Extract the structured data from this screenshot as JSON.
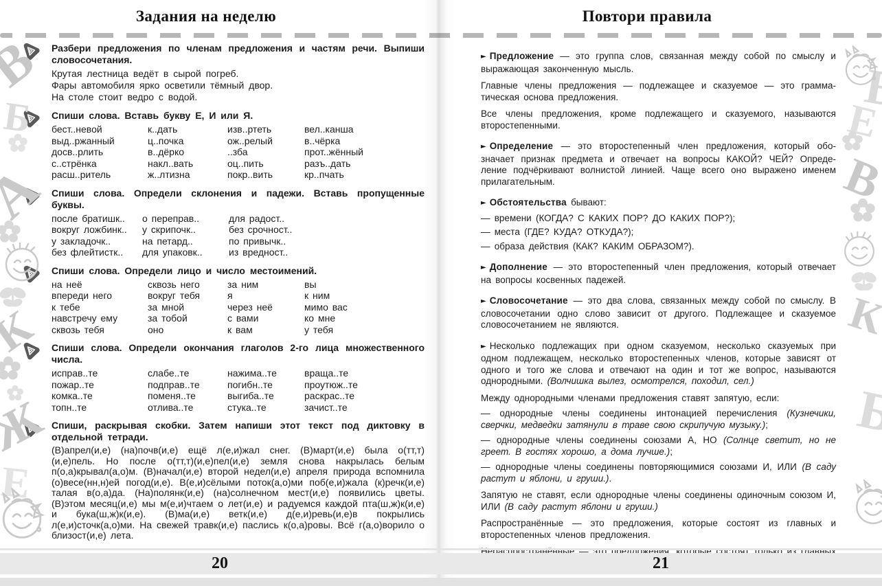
{
  "left_page": {
    "title": "Задания на неделю",
    "page_number": "20",
    "tasks": [
      {
        "instruction": "Разбери предложения по членам предложения и частям речи. Вы­пиши словосочетания.",
        "lines": [
          "Крутая лестница ведёт в сырой погреб.",
          "Фары автомобиля ярко осветили тёмный двор.",
          "На столе стоит ведро с водой."
        ]
      },
      {
        "instruction": "Спиши слова. Вставь букву Е, И или Я.",
        "columns": [
          [
            "бест..невой",
            "выд..ржанный",
            "досв..рлить",
            "с..стрёнка",
            "расш..ритель"
          ],
          [
            "к..дать",
            "ц..почка",
            "в..дёрко",
            "накл..вать",
            "ж..лтизна"
          ],
          [
            "изв..ртеть",
            "ож..релый",
            "..зба",
            "оц..пить",
            "покр..вить"
          ],
          [
            "вел..канша",
            "в..чёрка",
            "прот..жённый",
            "разъ..дать",
            "кр..пчать"
          ]
        ]
      },
      {
        "instruction": "Спиши слова. Определи склонения и падежи. Вставь пропущенные буквы.",
        "columns": [
          [
            "после братишк..",
            "вокруг ложбинк..",
            "у закладочк..",
            "без флейтистк.."
          ],
          [
            "о переправ..",
            "у скрипочк..",
            "на петард..",
            "для упаковк.."
          ],
          [
            "для радост..",
            "без срочност..",
            "по привычк..",
            "из вредност.."
          ]
        ]
      },
      {
        "instruction": "Спиши слова. Определи лицо и число местоимений.",
        "columns": [
          [
            "на неё",
            "впереди него",
            "к тебе",
            "навстречу ему",
            "сквозь тебя"
          ],
          [
            "сквозь него",
            "вокруг тебя",
            "за мной",
            "за тобой",
            "оно"
          ],
          [
            "за ним",
            "я",
            "через неё",
            "с вами",
            "к вам"
          ],
          [
            "вы",
            "к ним",
            "мимо вас",
            "ко мне",
            "у тебя"
          ]
        ]
      },
      {
        "instruction": "Спиши слова. Определи окончания глаголов 2-го лица множествен­ного числа.",
        "columns": [
          [
            "исправ..те",
            "пожар..те",
            "комка..те",
            "топн..те"
          ],
          [
            "слабе..те",
            "подправ..те",
            "поменя..те",
            "отлива..те"
          ],
          [
            "нажима..те",
            "погибн..те",
            "выгиба..те",
            "стука..те"
          ],
          [
            "враща..те",
            "проутюж..те",
            "раскрас..те",
            "зачист..те"
          ]
        ]
      },
      {
        "instruction": "Спиши, раскрывая скобки. Затем напиши этот текст под диктовку в отдельной тетради.",
        "text": "(В)апрел(и,е) (на)почв(и,е) ещё л(е,и)жал снег. (В)март(и,е) была о(тт,т)(и,е)пель. Но после о(тт,т)(и,е)пел(и,е) земля снова накрылась белым п(о,а)крывал(а,о)м. (В)начал(и,е) второй недел(и,е) апреля природа вспомнила (о)весе(нн,н)ей погод(и,е). В(е,и)сёлыми поток(а,о)ми поб(е,и)жала (к)речк(и,е) талая в(о,а)да. (На)полянк(и,е) (на)солнечном мест(и,е) появились цветы. (В)этом месяц(и,е) мы м(е,и)чтаем о лет(и,е) и радуемся каждой пта(ш,ж)к(и,е) и бука(ш,ж)к(и,е). (В)ма(и,е) ветк(и,е) д(е,и)ревь(и,е)в покрылись л(е,и)сточк(а,о)ми. На свежей травк(и,е) паслись к(о,а)ровы. Всё г(а,о)ворило о близост(и,е) лета."
      }
    ]
  },
  "right_page": {
    "title": "Повтори правила",
    "page_number": "21",
    "bullet": "►",
    "rules": [
      {
        "term": "Предложение",
        "text": "— это группа слов, связанная между собой по смыслу и выражающая законченную мысль."
      },
      {
        "text": "Главные члены предложения — подлежащее и сказуемое — это грамма­тическая основа предложения."
      },
      {
        "text": "Все члены предложения, кроме подлежащего и сказуемого, называются второстепенными."
      },
      {
        "term": "Определение",
        "text": "— это второстепенный член предложения, который обо­значает признак предмета и отвечает на вопросы КАКОЙ? ЧЕЙ? Опреде­ление подчёркивают волнистой линией. Чаще всего оно выражено име­нем прилагательным."
      },
      {
        "term": "Обстоятельства",
        "text": "бывают:",
        "items": [
          "— времени (КОГДА? С КАКИХ ПОР? ДО КАКИХ ПОР?);",
          "— места (ГДЕ? КУДА? ОТКУДА?);",
          "— образа действия (КАК? КАКИМ ОБРАЗОМ?)."
        ]
      },
      {
        "term": "Дополнение",
        "text": "— это второстепенный член предложения, который отве­чает на вопросы косвенных падежей."
      },
      {
        "term": "Словосочетание",
        "text": "— это два слова, связанных между собой по смыс­лу. В словосочетании одно слово зависит от другого. Подлежащее и сказуемое словосочетанием не являются."
      },
      {
        "text": "Несколько подлежащих при одном сказуемом, несколько сказуемых при одном подлежащем, несколько второстепенных членов, которые за­висят от одного и того же слова и отвечают на один и тот же вопрос, называются однородными. ",
        "example": "(Волчишка вылез, осмотрелся, походил, сел.)"
      },
      {
        "text": "Между однородными членами предложения ставят запятую, если:",
        "items": [
          {
            "text": "— однородные члены соединены интонацией перечисления ",
            "example": "(Кузнечики, сверчки, медведки затянули в траве свою скрипучую музыку.)",
            "tail": ";"
          },
          {
            "text": "— однородные члены соединены союзами А, НО ",
            "example": "(Солнце светит, но не греет. В гостях хорошо, а дома лучше.)",
            "tail": ";"
          },
          {
            "text": "— однородные члены соединены повторяющимися союзами И, ИЛИ ",
            "example": "(В саду растут и яблони, и груши.)",
            "tail": "."
          }
        ]
      },
      {
        "text": "Запятую не ставят, если однородные члены соединены одиночным сою­зом И, ИЛИ ",
        "example": "(В саду растут яблони и груши.)"
      },
      {
        "text": "Распространённые — это предложения, которые состоят из главных и второстепенных членов предложения."
      },
      {
        "text": "Нераспространённые — это предложения, которые состоят только из главных членов предложения."
      }
    ]
  },
  "decorations": {
    "left_margin_letters": [
      "В",
      "Б",
      "А",
      "К",
      "Ж",
      "Е"
    ],
    "right_margin_letters": [
      "Б",
      "Е",
      "В",
      "К",
      "Б"
    ]
  }
}
